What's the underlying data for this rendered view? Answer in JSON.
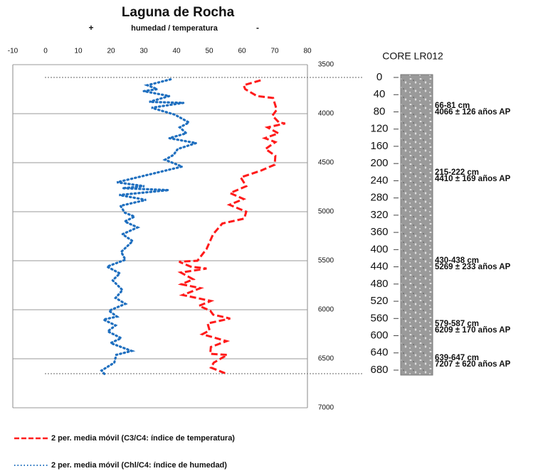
{
  "chart_data": {
    "type": "line",
    "title": "Laguna de Rocha",
    "subtitle_left": "+",
    "subtitle": "humedad / temperatura",
    "subtitle_right": "-",
    "xlim": [
      -10,
      80
    ],
    "xticks": [
      -10,
      0,
      10,
      20,
      30,
      40,
      50,
      60,
      70,
      80
    ],
    "ylim": [
      3500,
      7000
    ],
    "yticks": [
      3500,
      4000,
      4500,
      5000,
      5500,
      6000,
      6500,
      7000
    ],
    "grid": true,
    "series": [
      {
        "name": "2 per. media móvil (C3/C4: índice de temperatura)",
        "color": "#ff1a1a",
        "style": "dashed",
        "values": [
          65.7,
          60.5,
          61,
          64.6,
          69.5,
          70.6,
          69.3,
          71.3,
          73.2,
          67.8,
          71.1,
          67,
          70.2,
          67.2,
          70.2,
          70,
          65.9,
          59.6,
          61.3,
          56.4,
          60.5,
          56.2,
          61.3,
          60.7,
          54,
          51.2,
          49.2,
          46.4,
          40.8,
          44.3,
          49.2,
          41.3,
          45.1,
          41.5,
          47.3,
          41.9,
          50.5,
          46.9,
          50.3,
          51.2,
          56.4,
          49.5,
          50.1,
          47.9,
          55.3,
          50.5,
          50.3,
          55.5,
          51.4,
          50.5,
          55
        ],
        "y": [
          3660,
          3710,
          3750,
          3820,
          3840,
          3960,
          4020,
          4090,
          4100,
          4140,
          4200,
          4250,
          4290,
          4360,
          4430,
          4520,
          4580,
          4650,
          4740,
          4810,
          4870,
          4930,
          5000,
          5070,
          5120,
          5230,
          5380,
          5500,
          5510,
          5560,
          5580,
          5620,
          5690,
          5740,
          5780,
          5850,
          5910,
          5960,
          6010,
          6050,
          6090,
          6140,
          6210,
          6250,
          6320,
          6380,
          6450,
          6460,
          6540,
          6590,
          6650
        ]
      },
      {
        "name": "2 per. media móvil (Chl/C4: índice de humedad)",
        "color": "#1f6fbf",
        "style": "dotted",
        "values": [
          38.2,
          31.1,
          34.1,
          30,
          37.8,
          31.7,
          42.1,
          32.4,
          39.5,
          43.8,
          41,
          43,
          37.8,
          46,
          40.4,
          39.1,
          36.5,
          41.7,
          31.7,
          21.8,
          30.2,
          23.5,
          37.6,
          22.5,
          30.7,
          22.9,
          24.2,
          27.2,
          24.2,
          28.1,
          23.5,
          26.6,
          23.1,
          24.4,
          18.8,
          22.7,
          20.5,
          23.5,
          21.4,
          24.4,
          19.4,
          21.8,
          17.7,
          21.4,
          19,
          23.1,
          19.9,
          26.3,
          21.6,
          21,
          17.1,
          18.1
        ],
        "y": [
          3650,
          3710,
          3750,
          3770,
          3820,
          3880,
          3890,
          3940,
          4010,
          4090,
          4140,
          4200,
          4250,
          4300,
          4360,
          4420,
          4470,
          4540,
          4620,
          4700,
          4740,
          4760,
          4780,
          4830,
          4880,
          4940,
          5010,
          5050,
          5100,
          5160,
          5230,
          5300,
          5410,
          5490,
          5560,
          5630,
          5700,
          5800,
          5880,
          5940,
          6010,
          6070,
          6100,
          6160,
          6220,
          6290,
          6340,
          6420,
          6460,
          6540,
          6620,
          6660
        ]
      }
    ],
    "core": {
      "title": "CORE LR012",
      "depth_lim": [
        0,
        680
      ],
      "depth_ticks": [
        0,
        40,
        80,
        120,
        160,
        200,
        240,
        280,
        320,
        360,
        400,
        440,
        480,
        520,
        560,
        600,
        640,
        680
      ],
      "annotations": [
        {
          "depth": "66-81 cm",
          "date": "4066 ± 126 años AP"
        },
        {
          "depth": "215-222  cm",
          "date": "4410 ± 169 años AP"
        },
        {
          "depth": "430-438  cm",
          "date": "5269 ± 233 años AP"
        },
        {
          "depth": "579-587  cm",
          "date": "6209 ± 170 años AP"
        },
        {
          "depth": "639-647  cm",
          "date": "7207 ± 620 años AP"
        }
      ]
    }
  }
}
